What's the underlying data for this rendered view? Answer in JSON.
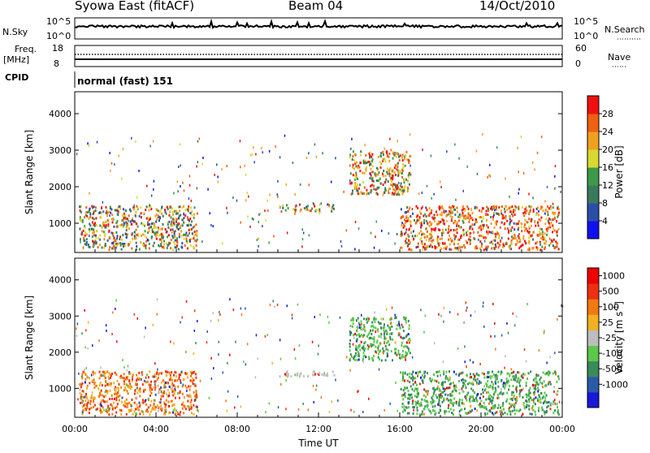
{
  "header": {
    "station": "Syowa East (fitACF)",
    "beam": "Beam 04",
    "date": "14/Oct/2010"
  },
  "strips": {
    "nsky_label": "N.Sky",
    "nsky_ticks": [
      "10^5",
      "10^0"
    ],
    "nsearch_label": "N.Search",
    "nsearch_ticks": [
      "10^5",
      "10^0"
    ],
    "freq_label": "Freq.",
    "freq_unit": "[MHz]",
    "freq_ticks": [
      "18",
      "8"
    ],
    "nave_label": "Nave",
    "nave_ticks": [
      "60",
      "0"
    ],
    "cpid_label": "CPID",
    "cpid_value": "normal (fast) 151"
  },
  "chart_data": [
    {
      "type": "heatmap",
      "name": "power-panel",
      "ylabel": "Slant Range [km]",
      "ylim": [
        200,
        4600
      ],
      "yticks": [
        "1000",
        "2000",
        "3000",
        "4000"
      ],
      "xlim": [
        0,
        24
      ],
      "colorbar": {
        "label": "Power [dB]",
        "ticks": [
          "4",
          "8",
          "12",
          "16",
          "20",
          "24",
          "28"
        ],
        "colors": [
          "#1010ee",
          "#2a4fa8",
          "#3a7a5c",
          "#3c9a48",
          "#d8d830",
          "#f0a020",
          "#f06010",
          "#ee1010"
        ]
      },
      "echo_regions": [
        {
          "t": [
            0.2,
            6.0
          ],
          "range": [
            300,
            1500
          ],
          "dB": "4-28"
        },
        {
          "t": [
            10.0,
            12.8
          ],
          "range": [
            1350,
            1550
          ],
          "dB": "8-16"
        },
        {
          "t": [
            13.5,
            16.5
          ],
          "range": [
            1800,
            3000
          ],
          "dB": "8-24"
        },
        {
          "t": [
            16.0,
            23.8
          ],
          "range": [
            300,
            1500
          ],
          "dB": "12-28"
        }
      ]
    },
    {
      "type": "heatmap",
      "name": "velocity-panel",
      "ylabel": "Slant Range [km]",
      "ylim": [
        200,
        4600
      ],
      "yticks": [
        "1000",
        "2000",
        "3000",
        "4000"
      ],
      "xlim": [
        0,
        24
      ],
      "xticks": [
        "00:00",
        "04:00",
        "08:00",
        "12:00",
        "16:00",
        "20:00",
        "00:00"
      ],
      "xlabel": "Time UT",
      "colorbar": {
        "label": "Velocity [m s",
        "label_exponent": "-1",
        "label_close": "]",
        "ticks": [
          "1000",
          "500",
          "100",
          "25",
          "-25",
          "-100",
          "-500",
          "-1000"
        ],
        "colors": [
          "#1818d8",
          "#2a5aa8",
          "#3a8a5a",
          "#5ac848",
          "#bdbdbd",
          "#f0b020",
          "#f07a10",
          "#ee3010",
          "#ee0000"
        ]
      },
      "echo_regions": [
        {
          "t": [
            0.2,
            6.0
          ],
          "range": [
            300,
            1500
          ],
          "v": "-500 to 100"
        },
        {
          "t": [
            10.0,
            12.8
          ],
          "range": [
            1350,
            1500
          ],
          "v": "-25 to 25"
        },
        {
          "t": [
            13.5,
            16.5
          ],
          "range": [
            1800,
            3000
          ],
          "v": "100 to 500"
        },
        {
          "t": [
            16.0,
            23.8
          ],
          "range": [
            300,
            1500
          ],
          "v": "100 to 500"
        }
      ]
    }
  ]
}
